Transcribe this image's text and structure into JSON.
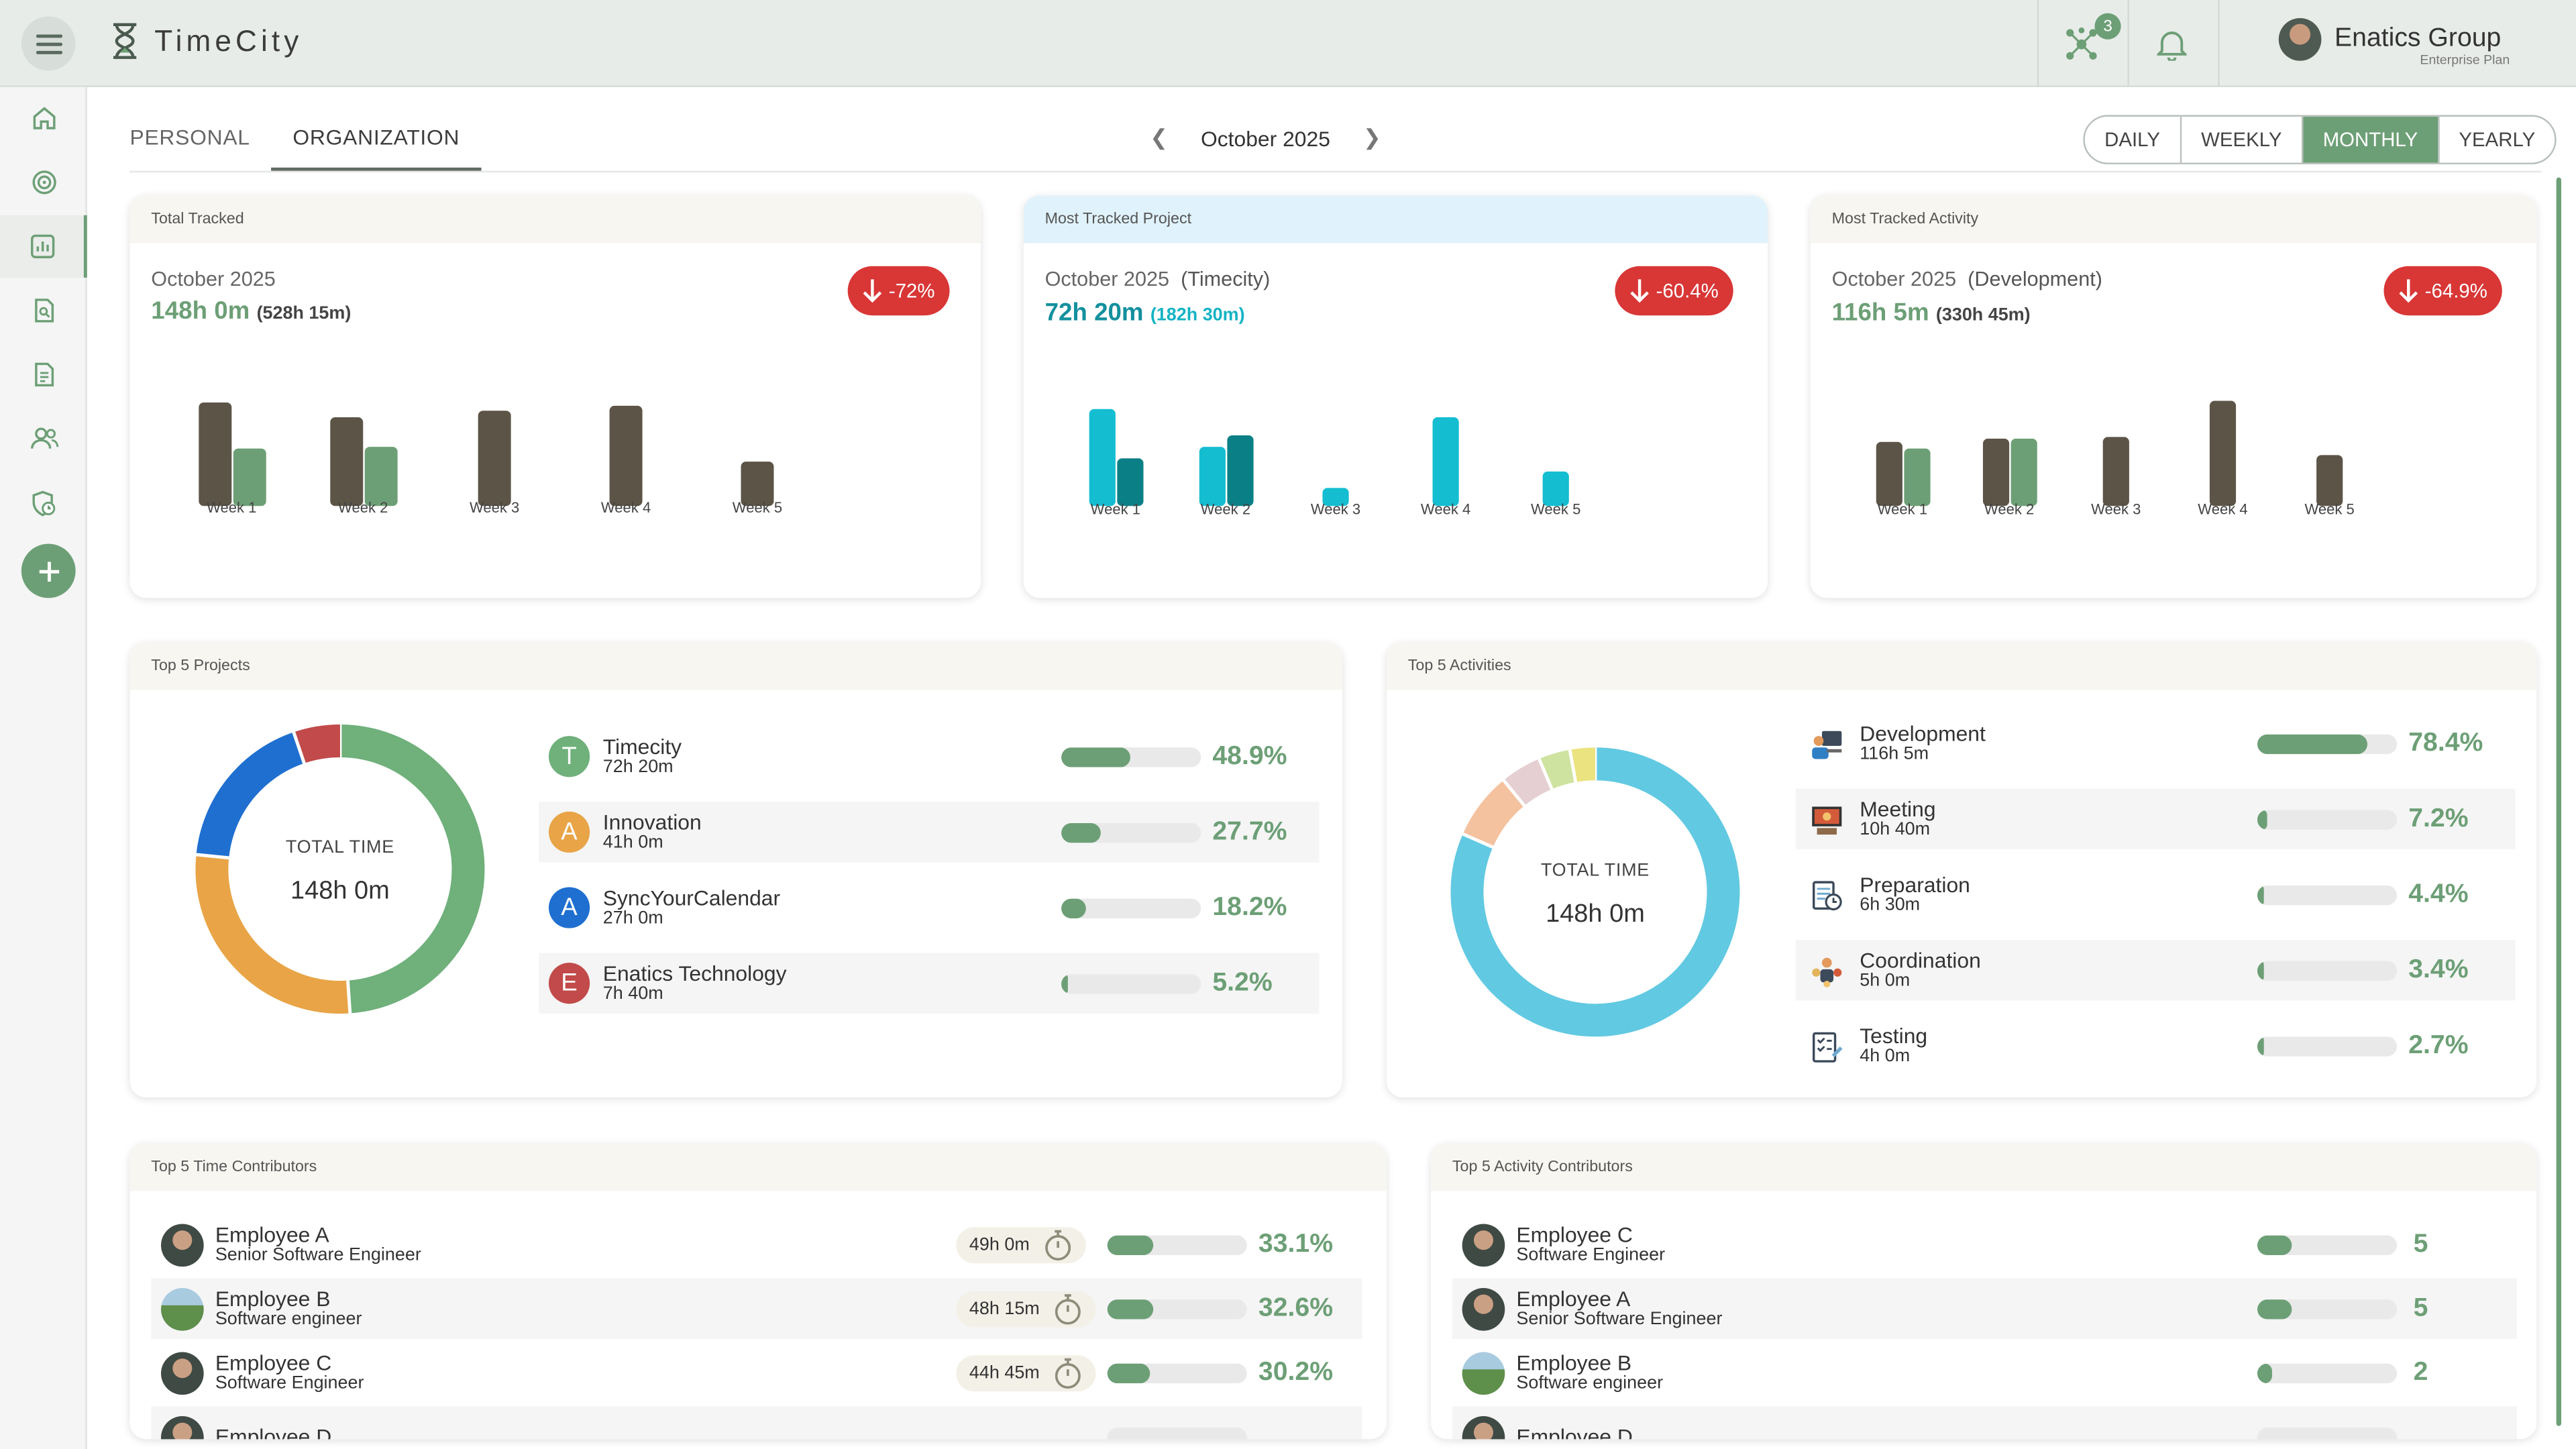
{
  "app": {
    "name": "TimeCity",
    "notif_count": "3"
  },
  "user": {
    "name": "Enatics Group",
    "plan": "Enterprise Plan"
  },
  "sidebar": {
    "icons": [
      "home-icon",
      "target-icon",
      "chart-icon",
      "search-doc-icon",
      "document-icon",
      "users-icon",
      "clock-shield-icon"
    ],
    "active_index": 2
  },
  "tabs": [
    "PERSONAL",
    "ORGANIZATION"
  ],
  "active_tab": "ORGANIZATION",
  "period": "October 2025",
  "range_options": [
    "DAILY",
    "WEEKLY",
    "MONTHLY",
    "YEARLY"
  ],
  "active_range": "MONTHLY",
  "colors": {
    "accent": "#6d9f76",
    "dark": "#5c5447",
    "teal": "#14bdd0",
    "teal_dark": "#0b7f86",
    "down": "#d93636"
  },
  "total_tracked": {
    "title": "Total Tracked",
    "period": "October 2025",
    "value": "148h 0m",
    "prev": "(528h 15m)",
    "change": "-72%",
    "chart_data": {
      "type": "bar",
      "categories": [
        "Week 1",
        "Week 2",
        "Week 3",
        "Week 4",
        "Week 5"
      ],
      "series": [
        {
          "values": [
            64,
            55,
            59,
            62,
            27
          ]
        },
        {
          "values": [
            36,
            37,
            0,
            0,
            0
          ]
        }
      ]
    }
  },
  "most_project": {
    "title": "Most Tracked Project",
    "period": "October 2025",
    "name": "(Timecity)",
    "value": "72h 20m",
    "prev": "(182h 30m)",
    "change": "-60.4%",
    "chart_data": {
      "type": "bar",
      "categories": [
        "Week 1",
        "Week 2",
        "Week 3",
        "Week 4",
        "Week 5"
      ],
      "series": [
        {
          "values": [
            60,
            37,
            11,
            55,
            21
          ]
        },
        {
          "values": [
            29,
            44,
            0,
            0,
            0
          ]
        }
      ]
    }
  },
  "most_activity": {
    "title": "Most Tracked Activity",
    "period": "October 2025",
    "name": "(Development)",
    "value": "116h 5m",
    "prev": "(330h 45m)",
    "change": "-64.9%",
    "chart_data": {
      "type": "bar",
      "categories": [
        "Week 1",
        "Week 2",
        "Week 3",
        "Week 4",
        "Week 5"
      ],
      "series": [
        {
          "values": [
            40,
            42,
            43,
            65,
            32
          ]
        },
        {
          "values": [
            36,
            42,
            0,
            0,
            0
          ]
        }
      ]
    }
  },
  "top_projects": {
    "title": "Top 5 Projects",
    "total_label": "TOTAL TIME",
    "total_value": "148h 0m",
    "items": [
      {
        "initial": "T",
        "name": "Timecity",
        "time": "72h 20m",
        "pct": "48.9%",
        "value": 48.9,
        "color": "#6fb07b"
      },
      {
        "initial": "A",
        "name": "Innovation",
        "time": "41h 0m",
        "pct": "27.7%",
        "value": 27.7,
        "color": "#e8a446"
      },
      {
        "initial": "A",
        "name": "SyncYourCalendar",
        "time": "27h 0m",
        "pct": "18.2%",
        "value": 18.2,
        "color": "#1f6fd0"
      },
      {
        "initial": "E",
        "name": "Enatics Technology",
        "time": "7h 40m",
        "pct": "5.2%",
        "value": 5.2,
        "color": "#c24a4a"
      }
    ]
  },
  "top_activities": {
    "title": "Top 5 Activities",
    "total_label": "TOTAL TIME",
    "total_value": "148h 0m",
    "items": [
      {
        "icon": "development-icon",
        "name": "Development",
        "time": "116h 5m",
        "pct": "78.4%",
        "value": 78.4,
        "color": "#62c9e2"
      },
      {
        "icon": "meeting-icon",
        "name": "Meeting",
        "time": "10h 40m",
        "pct": "7.2%",
        "value": 7.2,
        "color": "#f4c29f"
      },
      {
        "icon": "preparation-icon",
        "name": "Preparation",
        "time": "6h 30m",
        "pct": "4.4%",
        "value": 4.4,
        "color": "#e5cfd2"
      },
      {
        "icon": "coordination-icon",
        "name": "Coordination",
        "time": "5h 0m",
        "pct": "3.4%",
        "value": 3.4,
        "color": "#cfe3a0"
      },
      {
        "icon": "testing-icon",
        "name": "Testing",
        "time": "4h 0m",
        "pct": "2.7%",
        "value": 2.7,
        "color": "#ebe37f"
      }
    ]
  },
  "time_contributors": {
    "title": "Top 5 Time Contributors",
    "items": [
      {
        "name": "Employee A",
        "role": "Senior Software Engineer",
        "time": "49h 0m",
        "pct": "33.1%",
        "value": 33.1,
        "avatar": "person"
      },
      {
        "name": "Employee B",
        "role": "Software engineer",
        "time": "48h 15m",
        "pct": "32.6%",
        "value": 32.6,
        "avatar": "landscape"
      },
      {
        "name": "Employee C",
        "role": "Software Engineer",
        "time": "44h 45m",
        "pct": "30.2%",
        "value": 30.2,
        "avatar": "person"
      },
      {
        "name": "Employee D",
        "role": "",
        "time": "",
        "pct": "",
        "value": 0,
        "avatar": "person"
      }
    ]
  },
  "activity_contributors": {
    "title": "Top 5 Activity Contributors",
    "items": [
      {
        "name": "Employee C",
        "role": "Software Engineer",
        "count": "5",
        "value": 5,
        "avatar": "person"
      },
      {
        "name": "Employee A",
        "role": "Senior Software Engineer",
        "count": "5",
        "value": 5,
        "avatar": "person"
      },
      {
        "name": "Employee B",
        "role": "Software engineer",
        "count": "2",
        "value": 2,
        "avatar": "landscape"
      },
      {
        "name": "Employee D",
        "role": "",
        "count": "",
        "value": 0,
        "avatar": "person"
      }
    ]
  }
}
